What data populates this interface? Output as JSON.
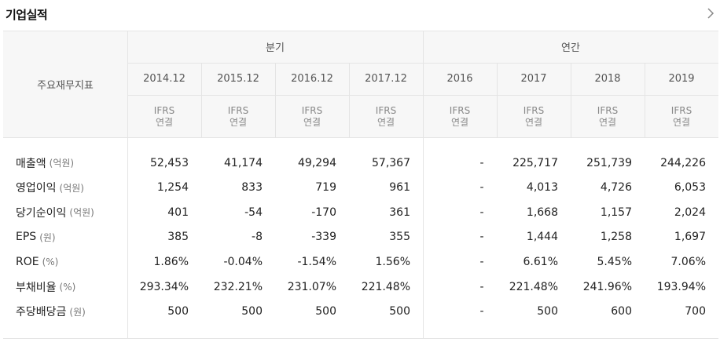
{
  "title": "기업실적",
  "more_icon": "chevron-right-icon",
  "header": {
    "metric_label": "주요재무지표",
    "group_quarterly": "분기",
    "group_annual": "연간",
    "periods": [
      "2014.12",
      "2015.12",
      "2016.12",
      "2017.12",
      "2016",
      "2017",
      "2018",
      "2019"
    ],
    "basis_top": "IFRS",
    "basis_bottom": "연결"
  },
  "rows": [
    {
      "label": "매출액",
      "unit": "(억원)",
      "values": [
        "52,453",
        "41,174",
        "49,294",
        "57,367",
        "-",
        "225,717",
        "251,739",
        "244,226"
      ]
    },
    {
      "label": "영업이익",
      "unit": "(억원)",
      "values": [
        "1,254",
        "833",
        "719",
        "961",
        "-",
        "4,013",
        "4,726",
        "6,053"
      ]
    },
    {
      "label": "당기순이익",
      "unit": "(억원)",
      "values": [
        "401",
        "-54",
        "-170",
        "361",
        "-",
        "1,668",
        "1,157",
        "2,024"
      ]
    },
    {
      "label": "EPS",
      "unit": "(원)",
      "values": [
        "385",
        "-8",
        "-339",
        "355",
        "-",
        "1,444",
        "1,258",
        "1,697"
      ]
    },
    {
      "label": "ROE",
      "unit": "(%)",
      "values": [
        "1.86%",
        "-0.04%",
        "-1.54%",
        "1.56%",
        "-",
        "6.61%",
        "5.45%",
        "7.06%"
      ]
    },
    {
      "label": "부채비율",
      "unit": "(%)",
      "values": [
        "293.34%",
        "232.21%",
        "231.07%",
        "221.48%",
        "-",
        "221.48%",
        "241.96%",
        "193.94%"
      ]
    },
    {
      "label": "주당배당금",
      "unit": "(원)",
      "values": [
        "500",
        "500",
        "500",
        "500",
        "-",
        "500",
        "600",
        "700"
      ]
    }
  ]
}
